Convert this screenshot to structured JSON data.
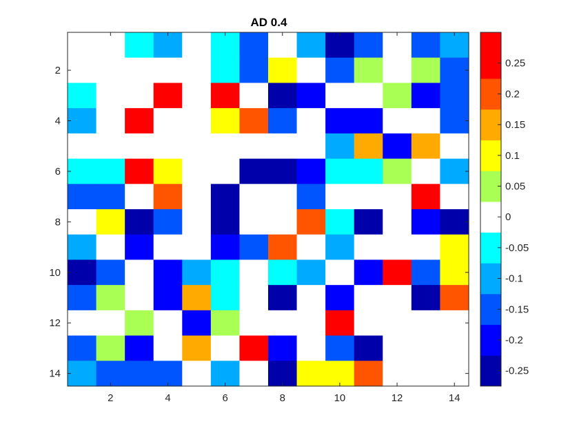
{
  "chart_data": {
    "type": "heatmap",
    "title": "AD 0.4",
    "xlabel": "",
    "ylabel": "",
    "x_ticks": [
      "2",
      "4",
      "6",
      "8",
      "10",
      "12",
      "14"
    ],
    "y_ticks": [
      "2",
      "4",
      "6",
      "8",
      "10",
      "12",
      "14"
    ],
    "n_rows": 14,
    "n_cols": 14,
    "color_limits": [
      -0.275,
      0.3
    ],
    "colorbar_levels": [
      -0.25,
      -0.2,
      -0.15,
      -0.1,
      -0.05,
      0,
      0.05,
      0.1,
      0.15,
      0.2,
      0.25
    ],
    "colorbar_tick_labels": [
      "0.25",
      "0.2",
      "0.15",
      "0.1",
      "0.05",
      "0",
      "-0.05",
      "-0.1",
      "-0.15",
      "-0.2",
      "-0.25"
    ],
    "colorbar_colors": {
      "-0.25": "#0000AA",
      "-0.2": "#0000FF",
      "-0.15": "#0055FF",
      "-0.1": "#00AAFF",
      "-0.05": "#00FFFF",
      "0": "#FFFFFF",
      "0.05": "#AAFF55",
      "0.1": "#FFFF00",
      "0.15": "#FFAA00",
      "0.2": "#FF5500",
      "0.25": "#FF0000"
    },
    "values": [
      [
        0,
        0,
        -0.05,
        -0.1,
        0,
        -0.05,
        -0.15,
        0,
        -0.1,
        -0.25,
        -0.15,
        0,
        -0.15,
        -0.1
      ],
      [
        0,
        0,
        0,
        0,
        0,
        -0.05,
        -0.15,
        0.1,
        0,
        -0.15,
        0.05,
        0,
        0.05,
        -0.15
      ],
      [
        -0.05,
        0,
        0,
        0.25,
        0,
        0.25,
        0,
        -0.25,
        -0.2,
        0,
        0,
        0.05,
        -0.2,
        -0.15
      ],
      [
        -0.1,
        0,
        0.25,
        0,
        0,
        0.1,
        0.2,
        -0.15,
        0,
        -0.2,
        -0.2,
        0,
        0,
        -0.15
      ],
      [
        0,
        0,
        0,
        0,
        0,
        0,
        0,
        0,
        0,
        -0.1,
        0.15,
        -0.2,
        0.15,
        0
      ],
      [
        -0.05,
        -0.05,
        0.25,
        0.1,
        0,
        0,
        -0.25,
        -0.25,
        -0.2,
        -0.05,
        -0.05,
        0.05,
        0,
        -0.1
      ],
      [
        -0.15,
        -0.15,
        0,
        0.2,
        0,
        -0.25,
        0,
        0,
        -0.15,
        0,
        0,
        0,
        0.25,
        0
      ],
      [
        0,
        0.1,
        -0.25,
        -0.15,
        0,
        -0.25,
        0,
        0,
        0.2,
        -0.05,
        -0.25,
        0,
        -0.2,
        -0.25
      ],
      [
        -0.1,
        0,
        -0.2,
        0,
        0,
        -0.2,
        -0.15,
        0.2,
        0,
        -0.1,
        0,
        0,
        0,
        0.1
      ],
      [
        -0.25,
        -0.15,
        0,
        -0.2,
        -0.1,
        -0.05,
        0,
        -0.05,
        -0.1,
        0,
        -0.2,
        0.25,
        -0.15,
        0.1
      ],
      [
        -0.15,
        0.05,
        0,
        -0.2,
        0.15,
        -0.05,
        0,
        -0.25,
        0,
        -0.2,
        0,
        0,
        -0.25,
        0.2
      ],
      [
        0,
        0,
        0.05,
        0,
        -0.2,
        0.05,
        0,
        0,
        0,
        0.25,
        0,
        0,
        0,
        0
      ],
      [
        -0.15,
        0.05,
        -0.2,
        0,
        0.15,
        0,
        0.25,
        -0.2,
        0,
        -0.15,
        -0.25,
        0,
        0,
        0
      ],
      [
        -0.1,
        -0.15,
        -0.15,
        -0.15,
        0,
        -0.1,
        0,
        -0.25,
        0.1,
        0.1,
        0.2,
        0,
        0,
        0
      ]
    ]
  }
}
